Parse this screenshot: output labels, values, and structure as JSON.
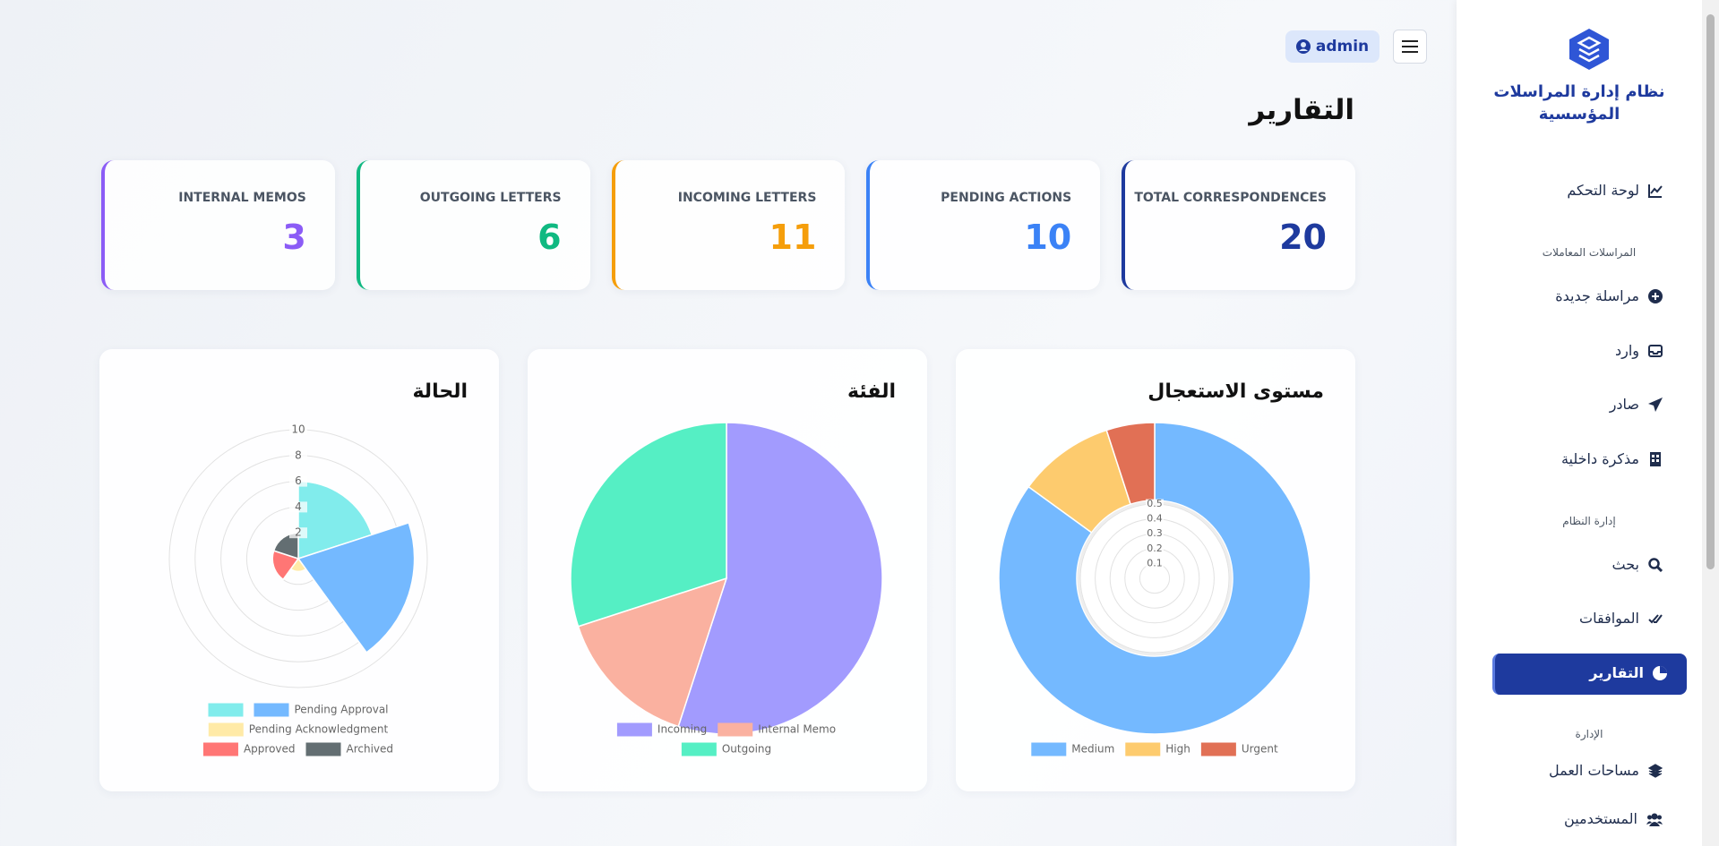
{
  "header": {
    "user": "admin",
    "page_title": "التقارير"
  },
  "sidebar": {
    "brand": [
      "نظام إدارة المراسلات",
      "المؤسسية"
    ],
    "dashboard": "لوحة التحكم",
    "groups": [
      {
        "heading": "المراسلات المعاملات",
        "links": [
          "مراسلة جديدة",
          "وارد",
          "صادر",
          "مذكرة داخلية"
        ]
      },
      {
        "heading": "إدارة النظام",
        "links": [
          "بحث",
          "الموافقات",
          "التقارير"
        ]
      },
      {
        "heading": "الإدارة",
        "links": [
          "مساحات العمل",
          "المستخدمين"
        ]
      }
    ]
  },
  "cards": [
    {
      "label": "TOTAL CORRESPONDENCES",
      "value": 20,
      "color": "#1e3a9e"
    },
    {
      "label": "PENDING ACTIONS",
      "value": 10,
      "color": "#3b82f6"
    },
    {
      "label": "INCOMING LETTERS",
      "value": 11,
      "color": "#f59e0b"
    },
    {
      "label": "OUTGOING LETTERS",
      "value": 6,
      "color": "#10b981"
    },
    {
      "label": "INTERNAL MEMOS",
      "value": 3,
      "color": "#8b5cf6"
    }
  ],
  "chart_data": [
    {
      "type": "doughnut",
      "title": "مستوى الاستعجال",
      "categories": [
        "Medium",
        "High",
        "Urgent"
      ],
      "values": [
        17,
        2,
        1
      ],
      "colors": [
        "#74b9ff",
        "#fdcb6e",
        "#e17055"
      ],
      "rlim": [
        0,
        0.5
      ],
      "rticks": [
        0.1,
        0.2,
        0.3,
        0.4,
        0.5
      ]
    },
    {
      "type": "pie",
      "title": "الفئة",
      "categories": [
        "Incoming",
        "Internal Memo",
        "Outgoing"
      ],
      "values": [
        11,
        3,
        6
      ],
      "colors": [
        "#a29bfe",
        "#fab1a0",
        "#55efc4"
      ]
    },
    {
      "type": "polarArea",
      "title": "الحالة",
      "categories": [
        null,
        "Pending Approval",
        "Pending Acknowledgment",
        "Approved",
        "Archived"
      ],
      "values": [
        6,
        9,
        1,
        2,
        2
      ],
      "colors": [
        "#81ecec",
        "#74b9ff",
        "#ffeaa7",
        "#ff7675",
        "#636e72"
      ],
      "rlim": [
        0,
        10
      ],
      "rticks": [
        2,
        4,
        6,
        8,
        10
      ]
    }
  ]
}
